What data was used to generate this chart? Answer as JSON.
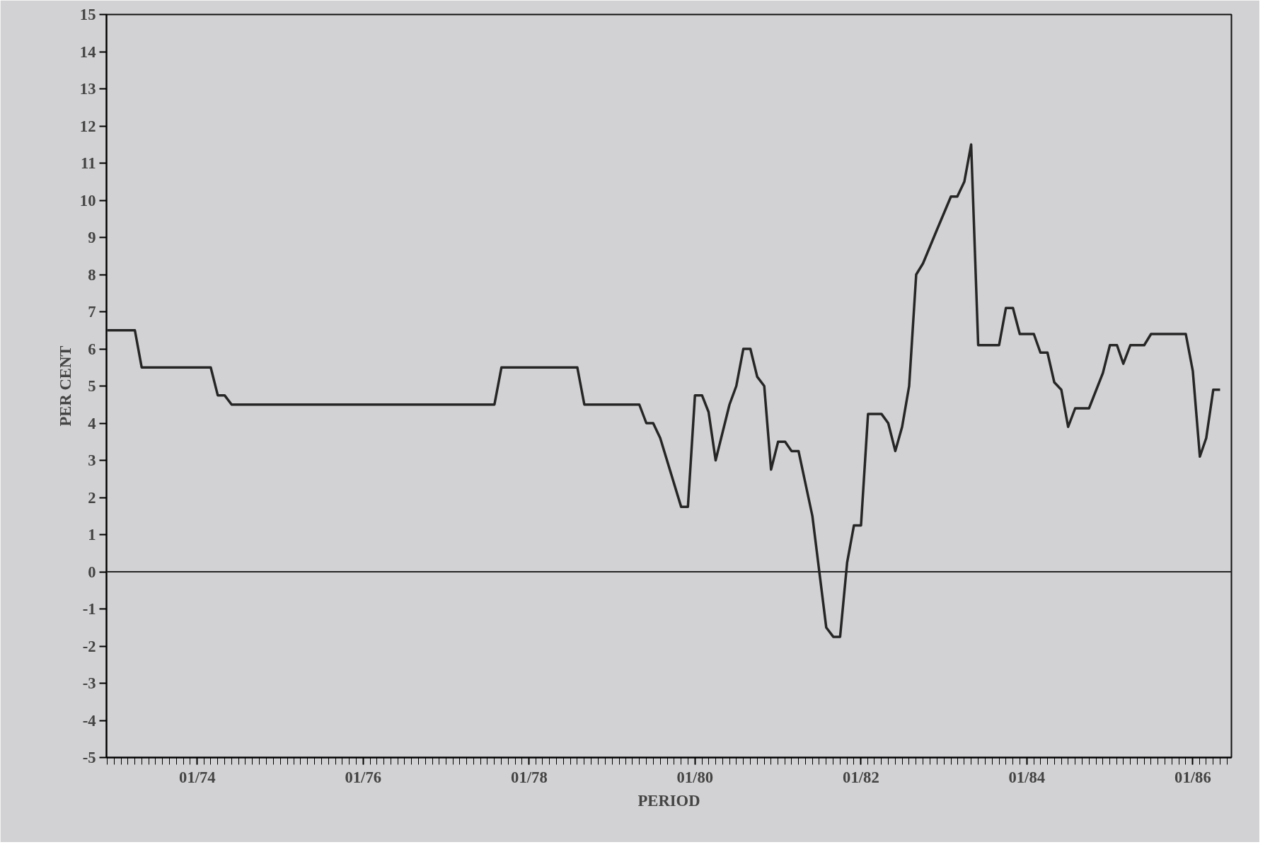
{
  "chart_data": {
    "type": "line",
    "xlabel": "PERIOD",
    "ylabel": "PER CENT",
    "x": [
      "1972-12",
      "1973-04",
      "1973-05",
      "1974-03",
      "1974-04",
      "1974-05",
      "1974-06",
      "1977-08",
      "1977-09",
      "1978-08",
      "1978-09",
      "1979-05",
      "1979-06",
      "1979-07",
      "1979-08",
      "1979-11",
      "1979-12",
      "1980-01",
      "1980-02",
      "1980-03",
      "1980-04",
      "1980-06",
      "1980-07",
      "1980-08",
      "1980-09",
      "1980-10",
      "1980-11",
      "1980-12",
      "1981-01",
      "1981-02",
      "1981-03",
      "1981-04",
      "1981-06",
      "1981-08",
      "1981-09",
      "1981-10",
      "1981-11",
      "1981-12",
      "1982-01",
      "1982-02",
      "1982-04",
      "1982-05",
      "1982-06",
      "1982-07",
      "1982-08",
      "1982-09",
      "1982-10",
      "1982-12",
      "1983-02",
      "1983-03",
      "1983-04",
      "1983-05",
      "1983-06",
      "1983-09",
      "1983-10",
      "1983-11",
      "1983-12",
      "1984-02",
      "1984-03",
      "1984-04",
      "1984-05",
      "1984-06",
      "1984-07",
      "1984-08",
      "1984-10",
      "1984-12",
      "1985-01",
      "1985-02",
      "1985-03",
      "1985-04",
      "1985-06",
      "1985-07",
      "1985-12",
      "1986-01",
      "1986-02",
      "1986-03",
      "1986-04",
      "1986-05"
    ],
    "series": [
      {
        "color": "#262626",
        "values": [
          6.5,
          6.5,
          5.5,
          5.5,
          4.75,
          4.75,
          4.5,
          4.5,
          5.5,
          5.5,
          4.5,
          4.5,
          4.0,
          4.0,
          3.6,
          1.75,
          1.75,
          4.75,
          4.75,
          4.3,
          3.0,
          4.5,
          5.0,
          6.0,
          6.0,
          5.25,
          5.0,
          2.75,
          3.5,
          3.5,
          3.25,
          3.25,
          1.5,
          -1.5,
          -1.75,
          -1.75,
          0.25,
          1.25,
          1.25,
          4.25,
          4.25,
          4.0,
          3.25,
          3.9,
          5.0,
          8.0,
          8.3,
          9.2,
          10.1,
          10.1,
          10.5,
          11.5,
          6.1,
          6.1,
          7.1,
          7.1,
          6.4,
          6.4,
          5.9,
          5.9,
          5.1,
          4.9,
          3.9,
          4.4,
          4.4,
          5.35,
          6.1,
          6.1,
          5.6,
          6.1,
          6.1,
          6.4,
          6.4,
          5.4,
          3.1,
          3.6,
          4.9,
          4.9
        ]
      }
    ],
    "xlim": [
      "1972-11-27",
      "1986-06-20"
    ],
    "xticks": [
      {
        "value": "1974-01",
        "label": "01/74"
      },
      {
        "value": "1976-01",
        "label": "01/76"
      },
      {
        "value": "1978-01",
        "label": "01/78"
      },
      {
        "value": "1980-01",
        "label": "01/80"
      },
      {
        "value": "1982-01",
        "label": "01/82"
      },
      {
        "value": "1984-01",
        "label": "01/84"
      },
      {
        "value": "1986-01",
        "label": "01/86"
      }
    ],
    "ylim": [
      -5,
      15
    ],
    "yticks": [
      -5,
      -4,
      -3,
      -2,
      -1,
      0,
      1,
      2,
      3,
      4,
      5,
      6,
      7,
      8,
      9,
      10,
      11,
      12,
      13,
      14,
      15
    ],
    "ref_lines": [
      {
        "axis": "y",
        "value": 0,
        "color": "#262626"
      }
    ],
    "grid": false,
    "marker": "none",
    "line_style": "solid"
  }
}
